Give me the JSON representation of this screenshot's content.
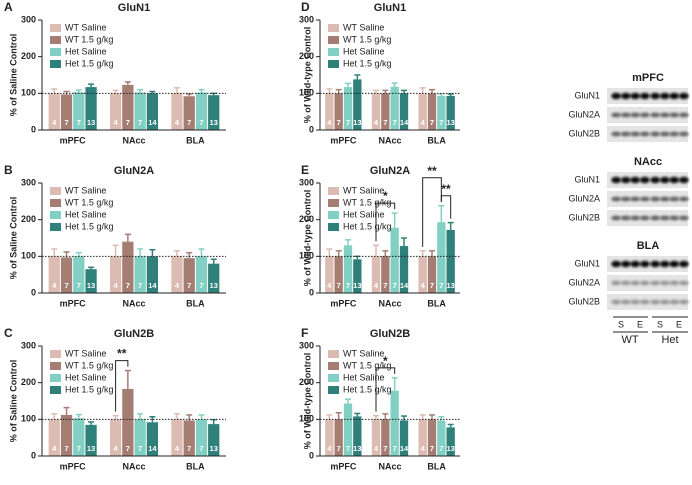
{
  "chart_data": [
    {
      "type": "bar",
      "panel": "A",
      "title": "GluN1",
      "y_label": "% of Saline Control",
      "categories": [
        "mPFC",
        "NAcc",
        "BLA"
      ],
      "ylim": [
        0,
        300
      ],
      "yticks": [
        0,
        100,
        200,
        300
      ],
      "reference_line": 100,
      "series": [
        {
          "name": "WT Saline",
          "color": "#dcbcb2",
          "values": [
            100,
            100,
            100
          ],
          "errors": [
            12,
            8,
            15
          ],
          "n": [
            4,
            4,
            4
          ]
        },
        {
          "name": "WT 1.5 g/kg",
          "color": "#a57d72",
          "values": [
            97,
            123,
            92
          ],
          "errors": [
            8,
            8,
            6
          ],
          "n": [
            7,
            7,
            7
          ]
        },
        {
          "name": "Het Saline",
          "color": "#82d0c3",
          "values": [
            103,
            102,
            102
          ],
          "errors": [
            6,
            8,
            8
          ],
          "n": [
            7,
            7,
            7
          ]
        },
        {
          "name": "Het 1.5 g/kg",
          "color": "#2f807a",
          "values": [
            117,
            100,
            95
          ],
          "errors": [
            8,
            5,
            5
          ],
          "n": [
            13,
            14,
            13
          ]
        }
      ],
      "annotations": []
    },
    {
      "type": "bar",
      "panel": "B",
      "title": "GluN2A",
      "y_label": "% of Saline Control",
      "categories": [
        "mPFC",
        "NAcc",
        "BLA"
      ],
      "ylim": [
        0,
        300
      ],
      "yticks": [
        0,
        100,
        200,
        300
      ],
      "reference_line": 100,
      "series": [
        {
          "name": "WT Saline",
          "color": "#dcbcb2",
          "values": [
            100,
            100,
            100
          ],
          "errors": [
            20,
            30,
            15
          ],
          "n": [
            4,
            4,
            4
          ]
        },
        {
          "name": "WT 1.5 g/kg",
          "color": "#a57d72",
          "values": [
            97,
            140,
            95
          ],
          "errors": [
            15,
            20,
            15
          ],
          "n": [
            7,
            7,
            7
          ]
        },
        {
          "name": "Het Saline",
          "color": "#82d0c3",
          "values": [
            100,
            100,
            100
          ],
          "errors": [
            10,
            20,
            20
          ],
          "n": [
            7,
            7,
            7
          ]
        },
        {
          "name": "Het 1.5 g/kg",
          "color": "#2f807a",
          "values": [
            65,
            100,
            80
          ],
          "errors": [
            5,
            18,
            12
          ],
          "n": [
            13,
            14,
            13
          ]
        }
      ],
      "annotations": []
    },
    {
      "type": "bar",
      "panel": "C",
      "title": "GluN2B",
      "y_label": "% of Saline Control",
      "categories": [
        "mPFC",
        "NAcc",
        "BLA"
      ],
      "ylim": [
        0,
        300
      ],
      "yticks": [
        0,
        100,
        200,
        300
      ],
      "reference_line": 100,
      "series": [
        {
          "name": "WT Saline",
          "color": "#dcbcb2",
          "values": [
            100,
            100,
            100
          ],
          "errors": [
            15,
            10,
            15
          ],
          "n": [
            4,
            4,
            4
          ]
        },
        {
          "name": "WT 1.5 g/kg",
          "color": "#a57d72",
          "values": [
            112,
            183,
            97
          ],
          "errors": [
            20,
            50,
            15
          ],
          "n": [
            7,
            7,
            7
          ]
        },
        {
          "name": "Het Saline",
          "color": "#82d0c3",
          "values": [
            103,
            100,
            100
          ],
          "errors": [
            10,
            15,
            12
          ],
          "n": [
            7,
            7,
            7
          ]
        },
        {
          "name": "Het 1.5 g/kg",
          "color": "#2f807a",
          "values": [
            85,
            92,
            87
          ],
          "errors": [
            8,
            15,
            12
          ],
          "n": [
            13,
            14,
            13
          ]
        }
      ],
      "annotations": [
        {
          "label": "**",
          "category": 1,
          "from": 0,
          "to": 1
        }
      ]
    },
    {
      "type": "bar",
      "panel": "D",
      "title": "GluN1",
      "y_label": "% of Wild-type Control",
      "categories": [
        "mPFC",
        "NAcc",
        "BLA"
      ],
      "ylim": [
        0,
        300
      ],
      "yticks": [
        0,
        100,
        200,
        300
      ],
      "reference_line": 100,
      "series": [
        {
          "name": "WT Saline",
          "color": "#dcbcb2",
          "values": [
            100,
            100,
            100
          ],
          "errors": [
            12,
            8,
            15
          ],
          "n": [
            4,
            4,
            4
          ]
        },
        {
          "name": "WT 1.5 g/kg",
          "color": "#a57d72",
          "values": [
            100,
            100,
            100
          ],
          "errors": [
            10,
            8,
            10
          ],
          "n": [
            7,
            7,
            7
          ]
        },
        {
          "name": "Het Saline",
          "color": "#82d0c3",
          "values": [
            117,
            118,
            93
          ],
          "errors": [
            10,
            10,
            5
          ],
          "n": [
            7,
            7,
            7
          ]
        },
        {
          "name": "Het 1.5 g/kg",
          "color": "#2f807a",
          "values": [
            138,
            100,
            93
          ],
          "errors": [
            12,
            8,
            5
          ],
          "n": [
            13,
            14,
            13
          ]
        }
      ],
      "annotations": []
    },
    {
      "type": "bar",
      "panel": "E",
      "title": "GluN2A",
      "y_label": "% of Wild-type Control",
      "categories": [
        "mPFC",
        "NAcc",
        "BLA"
      ],
      "ylim": [
        0,
        300
      ],
      "yticks": [
        0,
        100,
        200,
        300
      ],
      "reference_line": 100,
      "series": [
        {
          "name": "WT Saline",
          "color": "#dcbcb2",
          "values": [
            100,
            100,
            100
          ],
          "errors": [
            20,
            30,
            15
          ],
          "n": [
            4,
            4,
            4
          ]
        },
        {
          "name": "WT 1.5 g/kg",
          "color": "#a57d72",
          "values": [
            100,
            100,
            100
          ],
          "errors": [
            15,
            15,
            15
          ],
          "n": [
            7,
            7,
            7
          ]
        },
        {
          "name": "Het Saline",
          "color": "#82d0c3",
          "values": [
            130,
            178,
            193
          ],
          "errors": [
            15,
            40,
            45
          ],
          "n": [
            7,
            7,
            7
          ]
        },
        {
          "name": "Het 1.5 g/kg",
          "color": "#2f807a",
          "values": [
            92,
            128,
            172
          ],
          "errors": [
            8,
            22,
            20
          ],
          "n": [
            13,
            14,
            13
          ]
        }
      ],
      "annotations": [
        {
          "label": "*",
          "category": 1,
          "from": 0,
          "to": 2
        },
        {
          "label": "**",
          "category": 2,
          "from": 2,
          "to": 3
        },
        {
          "label": "**",
          "category": 2,
          "from": 0,
          "to": 2
        }
      ]
    },
    {
      "type": "bar",
      "panel": "F",
      "title": "GluN2B",
      "y_label": "% of Wild-type Control",
      "categories": [
        "mPFC",
        "NAcc",
        "BLA"
      ],
      "ylim": [
        0,
        300
      ],
      "yticks": [
        0,
        100,
        200,
        300
      ],
      "reference_line": 100,
      "series": [
        {
          "name": "WT Saline",
          "color": "#dcbcb2",
          "values": [
            100,
            100,
            100
          ],
          "errors": [
            12,
            10,
            12
          ],
          "n": [
            4,
            4,
            4
          ]
        },
        {
          "name": "WT 1.5 g/kg",
          "color": "#a57d72",
          "values": [
            100,
            100,
            100
          ],
          "errors": [
            18,
            15,
            12
          ],
          "n": [
            7,
            7,
            7
          ]
        },
        {
          "name": "Het Saline",
          "color": "#82d0c3",
          "values": [
            143,
            178,
            97
          ],
          "errors": [
            12,
            35,
            10
          ],
          "n": [
            7,
            7,
            7
          ]
        },
        {
          "name": "Het 1.5 g/kg",
          "color": "#2f807a",
          "values": [
            108,
            97,
            78
          ],
          "errors": [
            8,
            12,
            8
          ],
          "n": [
            13,
            14,
            13
          ]
        }
      ],
      "annotations": [
        {
          "label": "*",
          "category": 1,
          "from": 0,
          "to": 2
        }
      ]
    }
  ],
  "blot": {
    "regions": [
      {
        "title": "mPFC",
        "rows": [
          "GluN1",
          "GluN2A",
          "GluN2B"
        ]
      },
      {
        "title": "NAcc",
        "rows": [
          "GluN1",
          "GluN2A",
          "GluN2B"
        ]
      },
      {
        "title": "BLA",
        "rows": [
          "GluN1",
          "GluN2A",
          "GluN2B"
        ]
      }
    ],
    "lanes": [
      "S",
      "E",
      "S",
      "E"
    ],
    "groups": [
      "WT",
      "Het"
    ]
  }
}
